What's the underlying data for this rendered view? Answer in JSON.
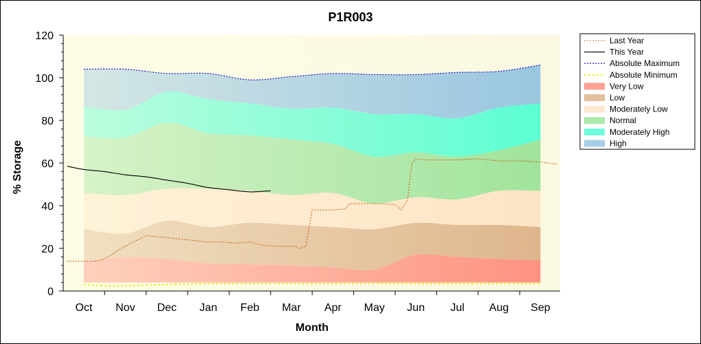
{
  "chart_data": {
    "type": "area",
    "title": "P1R003",
    "xlabel": "Month",
    "ylabel": "% Storage",
    "ylim": [
      0,
      120
    ],
    "yticks": [
      0,
      20,
      40,
      60,
      80,
      100,
      120
    ],
    "categories": [
      "Oct",
      "Nov",
      "Dec",
      "Jan",
      "Feb",
      "Mar",
      "Apr",
      "May",
      "Jun",
      "Jul",
      "Aug",
      "Sep"
    ],
    "grid": false,
    "legend_position": "right",
    "band_x": [
      0,
      1,
      2,
      3,
      4,
      5,
      6,
      7,
      8,
      9,
      10,
      11
    ],
    "bands": [
      {
        "name": "Very Low",
        "color": "#ff8070",
        "lower": [
          4,
          4,
          4,
          4,
          4,
          4,
          4,
          4,
          4,
          4,
          4,
          4
        ],
        "upper": [
          14,
          16,
          15,
          13,
          12.5,
          12,
          11,
          10,
          17,
          16,
          15,
          14.5
        ]
      },
      {
        "name": "Low",
        "color": "#d9aa7d",
        "lower": [
          14,
          16,
          15,
          13,
          12.5,
          12,
          11,
          10,
          17,
          16,
          15,
          14.5
        ],
        "upper": [
          29,
          27,
          33,
          30,
          32,
          31,
          30,
          29,
          32,
          31,
          31,
          30
        ]
      },
      {
        "name": "Moderately Low",
        "color": "#ffe0c0",
        "lower": [
          29,
          27,
          33,
          30,
          32,
          31,
          30,
          29,
          32,
          31,
          31,
          30
        ],
        "upper": [
          46,
          45,
          48,
          48,
          47,
          45,
          46,
          41,
          44,
          43,
          47,
          47
        ]
      },
      {
        "name": "Normal",
        "color": "#90e090",
        "lower": [
          46,
          45,
          48,
          48,
          47,
          45,
          46,
          41,
          44,
          43,
          47,
          47
        ],
        "upper": [
          72.5,
          72,
          79,
          74,
          73,
          71,
          69,
          63,
          65,
          63,
          66,
          71
        ]
      },
      {
        "name": "Moderately High",
        "color": "#40ffd0",
        "lower": [
          72.5,
          72,
          79,
          74,
          73,
          71,
          69,
          63,
          65,
          63,
          66,
          71
        ],
        "upper": [
          86.5,
          85,
          93.5,
          90,
          88,
          85.5,
          86,
          83,
          83,
          81,
          86,
          88
        ]
      },
      {
        "name": "High",
        "color": "#88bde0",
        "lower": [
          86.5,
          85,
          93.5,
          90,
          88,
          85.5,
          86,
          83,
          83,
          81,
          86,
          88
        ],
        "upper": [
          104,
          104,
          102,
          102,
          99,
          100.5,
          102,
          101.5,
          101.5,
          102.5,
          103,
          106
        ]
      }
    ],
    "series": [
      {
        "name": "Absolute Maximum",
        "color": "#0000cc",
        "dash": "2,2",
        "x": [
          0,
          1,
          2,
          3,
          4,
          5,
          6,
          7,
          8,
          9,
          10,
          11
        ],
        "values": [
          104,
          104,
          102,
          102,
          99,
          100.5,
          102,
          101.5,
          101.5,
          102.5,
          103,
          106
        ]
      },
      {
        "name": "Absolute Minimum",
        "color": "#e6e600",
        "dash": "3,3",
        "x": [
          0,
          0.5,
          1,
          2,
          3,
          4,
          5,
          6,
          7,
          8,
          9,
          10,
          11
        ],
        "values": [
          3,
          2.5,
          2.5,
          3,
          3.5,
          3.5,
          3.5,
          3.5,
          3.5,
          3.5,
          3.5,
          3.5,
          3.5
        ]
      },
      {
        "name": "Last Year",
        "color": "#c86414",
        "dash": "2,2",
        "x": [
          -0.4,
          0,
          0.3,
          0.5,
          0.9,
          1.5,
          2,
          2.5,
          3,
          3.3,
          3.7,
          4,
          4.3,
          4.6,
          5,
          5.1,
          5.2,
          5.35,
          5.5,
          5.6,
          6,
          6.3,
          6.4,
          6.6,
          7,
          7.5,
          7.65,
          7.8,
          7.9,
          8,
          8.2,
          8.6,
          9,
          9.5,
          10,
          10.5,
          11,
          11.4
        ],
        "values": [
          14,
          14,
          14,
          15,
          20,
          26,
          25,
          24,
          23,
          23,
          22.5,
          23,
          21.5,
          21,
          21,
          21,
          20,
          21,
          38,
          38,
          38,
          38.5,
          41,
          41,
          41,
          40.5,
          38,
          43,
          60,
          62,
          61.5,
          61.5,
          61.5,
          62,
          61,
          61,
          60.5,
          59.5
        ]
      },
      {
        "name": "This Year",
        "color": "#000000",
        "dash": "",
        "x": [
          -0.4,
          0,
          0.5,
          1,
          1.5,
          2,
          2.5,
          3,
          3.5,
          4,
          4.5
        ],
        "values": [
          58.5,
          57,
          56,
          54.5,
          53.5,
          52,
          50.5,
          48.5,
          47.5,
          46.5,
          47
        ]
      }
    ],
    "legend_order": [
      "Last Year",
      "This Year",
      "Absolute Maximum",
      "Absolute Minimum",
      "Very Low",
      "Low",
      "Moderately Low",
      "Normal",
      "Moderately High",
      "High"
    ]
  }
}
